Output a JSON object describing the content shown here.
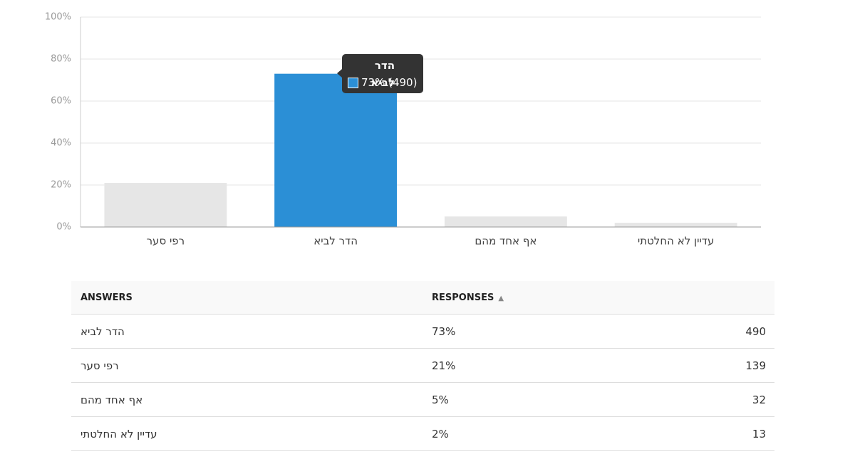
{
  "chart_data": {
    "type": "bar",
    "categories": [
      "רפי סער",
      "הדר לביא",
      "אף אחד מהם",
      "עדיין לא החלטתי"
    ],
    "values": [
      21,
      73,
      5,
      2
    ],
    "colors": [
      "#e6e6e6",
      "#2b8fd6",
      "#e6e6e6",
      "#e6e6e6"
    ],
    "ylim": [
      0,
      100
    ],
    "yticks": [
      {
        "value": 0,
        "label": "0%"
      },
      {
        "value": 20,
        "label": "20%"
      },
      {
        "value": 40,
        "label": "40%"
      },
      {
        "value": 60,
        "label": "60%"
      },
      {
        "value": 80,
        "label": "80%"
      },
      {
        "value": 100,
        "label": "100%"
      }
    ],
    "grid": true,
    "tooltip": {
      "title": "הדר לביא",
      "text": "73% (490)"
    }
  },
  "table": {
    "headers": [
      "ANSWERS",
      "RESPONSES"
    ],
    "rows": [
      [
        "הדר לביא",
        "73%",
        "490"
      ],
      [
        "רפי סער",
        "21%",
        "139"
      ],
      [
        "אף אחד מהם",
        "5%",
        "32"
      ],
      [
        "עדיין לא החלטתי",
        "2%",
        "13"
      ]
    ]
  }
}
